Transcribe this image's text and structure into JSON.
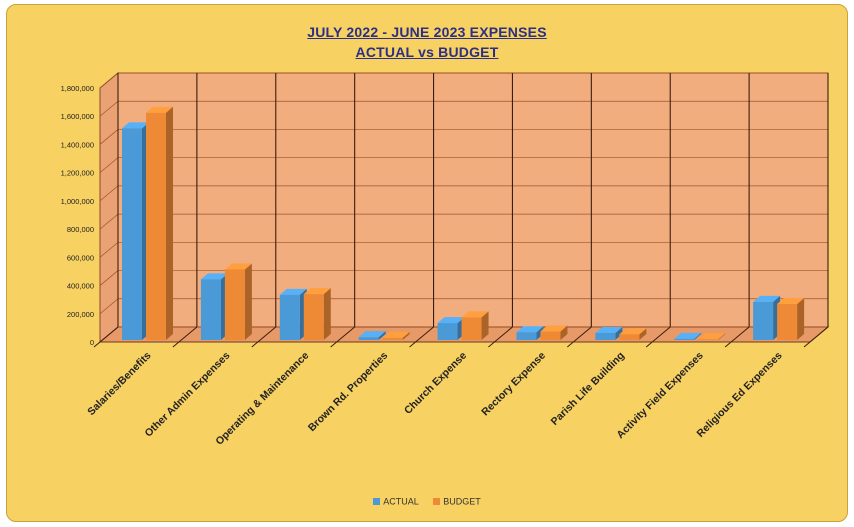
{
  "chart_data": {
    "type": "bar",
    "title": "JULY 2022 - JUNE 2023   EXPENSES",
    "subtitle": "ACTUAL vs BUDGET",
    "categories": [
      "Salaries/Benefits",
      "Other Admin Expenses",
      "Operating & Maintenance",
      "Brown Rd. Properties",
      "Church Expense",
      "Rectory Expense",
      "Parish Life Building",
      "Activity Field Expenses",
      "Religious Ed Expenses"
    ],
    "series": [
      {
        "name": "ACTUAL",
        "color": "#4b9ad8",
        "values": [
          1500000,
          430000,
          320000,
          20000,
          120000,
          55000,
          50000,
          8000,
          270000
        ]
      },
      {
        "name": "BUDGET",
        "color": "#ee8a36",
        "values": [
          1610000,
          500000,
          325000,
          15000,
          160000,
          60000,
          40000,
          5000,
          255000
        ]
      }
    ],
    "ylim": [
      0,
      1800000
    ],
    "yticks": [
      {
        "value": 0,
        "label": "0"
      },
      {
        "value": 200000,
        "label": "200,000"
      },
      {
        "value": 400000,
        "label": "400,000"
      },
      {
        "value": 600000,
        "label": "600,000"
      },
      {
        "value": 800000,
        "label": "800,000"
      },
      {
        "value": 1000000,
        "label": "1,000,000"
      },
      {
        "value": 1200000,
        "label": "1,200,000"
      },
      {
        "value": 1400000,
        "label": "1,400,000"
      },
      {
        "value": 1600000,
        "label": "1,600,000"
      },
      {
        "value": 1800000,
        "label": "1,800,000"
      }
    ],
    "grid": true,
    "legend_position": "bottom",
    "colors": {
      "frame": "#f7d162",
      "plot": "#f2ad7e",
      "title": "#2b2f86"
    }
  }
}
